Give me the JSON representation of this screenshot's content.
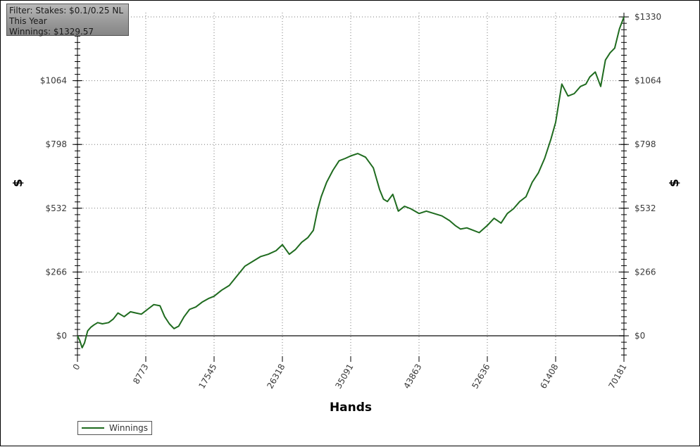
{
  "filter_box": {
    "line1": "Filter: Stakes: $0.1/0.25 NL",
    "line2": "This Year",
    "line3": "Winnings: $1329.57"
  },
  "legend": {
    "label": "Winnings"
  },
  "colors": {
    "series": "#1f6b1f",
    "zero_line": "#333333",
    "grid": "#7a7a7a"
  },
  "chart_data": {
    "type": "line",
    "title": "",
    "xlabel": "Hands",
    "ylabel": "$",
    "y2label": "$",
    "xlim": [
      0,
      70181
    ],
    "ylim": [
      -85,
      1345
    ],
    "x_ticks": [
      0,
      8773,
      17545,
      26318,
      35091,
      43863,
      52636,
      61408,
      70181
    ],
    "x_tick_labels": [
      "0",
      "8773",
      "17545",
      "26318",
      "35091",
      "43863",
      "52636",
      "61408",
      "70181"
    ],
    "y_ticks": [
      0,
      266,
      532,
      798,
      1064,
      1330
    ],
    "y_tick_labels": [
      "$0",
      "$266",
      "$532",
      "$798",
      "$1064",
      "$1330"
    ],
    "grid": true,
    "legend_position": "bottom-left",
    "series": [
      {
        "name": "Winnings",
        "x": [
          0,
          300,
          600,
          900,
          1300,
          1700,
          2100,
          2600,
          3200,
          4000,
          4600,
          5200,
          6000,
          6800,
          7500,
          8200,
          9000,
          9800,
          10600,
          11200,
          11800,
          12400,
          13000,
          13700,
          14400,
          15200,
          16000,
          16800,
          17545,
          18500,
          19500,
          20500,
          21500,
          22500,
          23500,
          24500,
          25500,
          26318,
          27200,
          28000,
          28800,
          29600,
          30300,
          30800,
          31300,
          32000,
          32800,
          33600,
          34400,
          35091,
          36000,
          37000,
          38000,
          38800,
          39300,
          39800,
          40500,
          41200,
          42000,
          42800,
          43863,
          44800,
          45800,
          46800,
          47800,
          48500,
          49200,
          50000,
          50800,
          51600,
          52636,
          53500,
          54400,
          55200,
          56000,
          56800,
          57600,
          58400,
          59200,
          60000,
          60800,
          61408,
          62200,
          63000,
          63800,
          64600,
          65300,
          65800,
          66500,
          67200,
          67800,
          68400,
          69000,
          69600,
          70181
        ],
        "y": [
          0,
          -20,
          -50,
          -30,
          20,
          35,
          45,
          55,
          50,
          55,
          70,
          95,
          80,
          100,
          95,
          90,
          110,
          130,
          125,
          80,
          50,
          30,
          40,
          80,
          110,
          120,
          140,
          155,
          165,
          190,
          210,
          250,
          290,
          310,
          330,
          340,
          355,
          380,
          340,
          360,
          390,
          410,
          440,
          520,
          580,
          640,
          690,
          730,
          740,
          750,
          760,
          745,
          700,
          610,
          570,
          560,
          590,
          520,
          540,
          530,
          510,
          520,
          510,
          500,
          480,
          460,
          445,
          450,
          440,
          430,
          460,
          490,
          470,
          510,
          530,
          560,
          580,
          640,
          680,
          740,
          820,
          890,
          1050,
          1000,
          1010,
          1040,
          1050,
          1080,
          1100,
          1040,
          1150,
          1180,
          1200,
          1280,
          1330
        ]
      }
    ]
  }
}
